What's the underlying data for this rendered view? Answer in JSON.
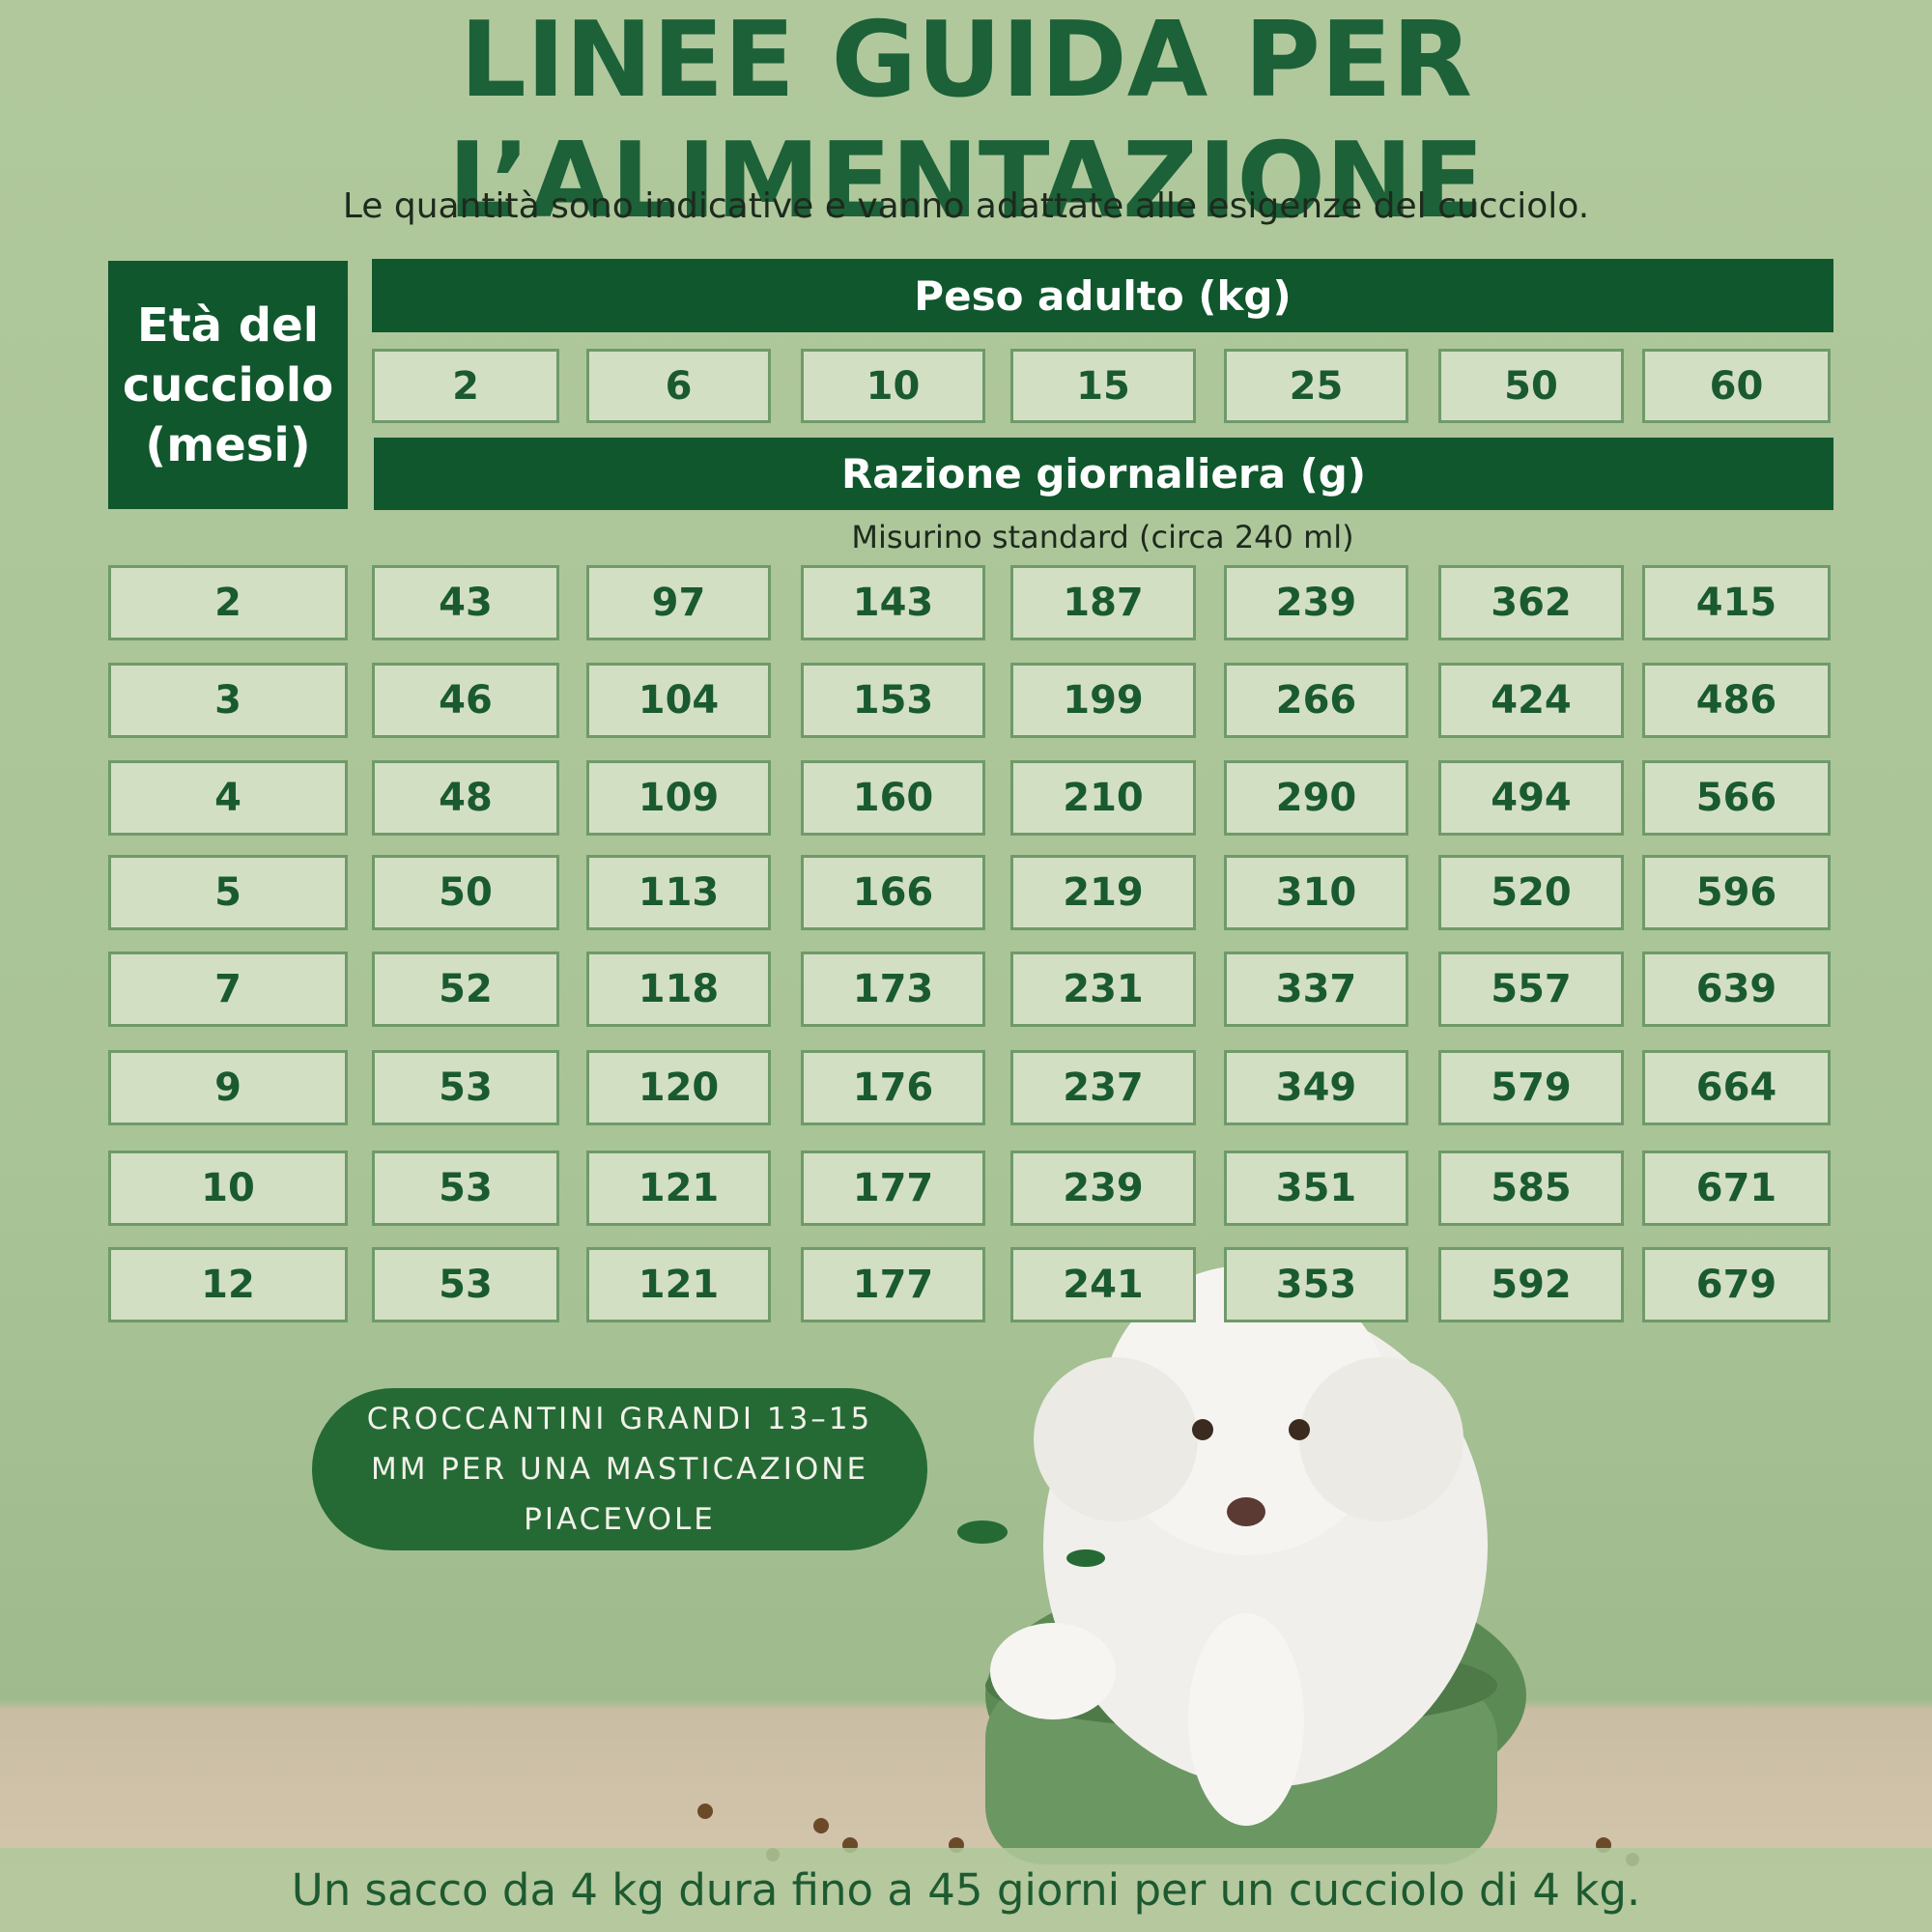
{
  "title": "LINEE GUIDA PER L’ALIMENTAZIONE",
  "subtitle": "Le quantità sono indicative e vanno adattate alle esigenze del cucciolo.",
  "table": {
    "age_header": "Età del cucciolo (mesi)",
    "weight_header": "Peso adulto (kg)",
    "weights": [
      2,
      6,
      10,
      15,
      25,
      50,
      60
    ],
    "ration_header": "Razione giornaliera (g)",
    "ration_note": "Misurino standard (circa 240 ml)",
    "rows": [
      {
        "age": 2,
        "values": [
          43,
          97,
          143,
          187,
          239,
          362,
          415
        ]
      },
      {
        "age": 3,
        "values": [
          46,
          104,
          153,
          199,
          266,
          424,
          486
        ]
      },
      {
        "age": 4,
        "values": [
          48,
          109,
          160,
          210,
          290,
          494,
          566
        ]
      },
      {
        "age": 5,
        "values": [
          50,
          113,
          166,
          219,
          310,
          520,
          596
        ]
      },
      {
        "age": 7,
        "values": [
          52,
          118,
          173,
          231,
          337,
          557,
          639
        ]
      },
      {
        "age": 9,
        "values": [
          53,
          120,
          176,
          237,
          349,
          579,
          664
        ]
      },
      {
        "age": 10,
        "values": [
          53,
          121,
          177,
          239,
          351,
          585,
          671
        ]
      },
      {
        "age": 12,
        "values": [
          53,
          121,
          177,
          241,
          353,
          592,
          679
        ]
      }
    ]
  },
  "bubble": "CROCCANTINI GRANDI 13–15 MM PER UNA MASTICAZIONE PIACEVOLE",
  "footer": "Un sacco da 4 kg dura fino a 45 giorni per un cucciolo di 4 kg."
}
